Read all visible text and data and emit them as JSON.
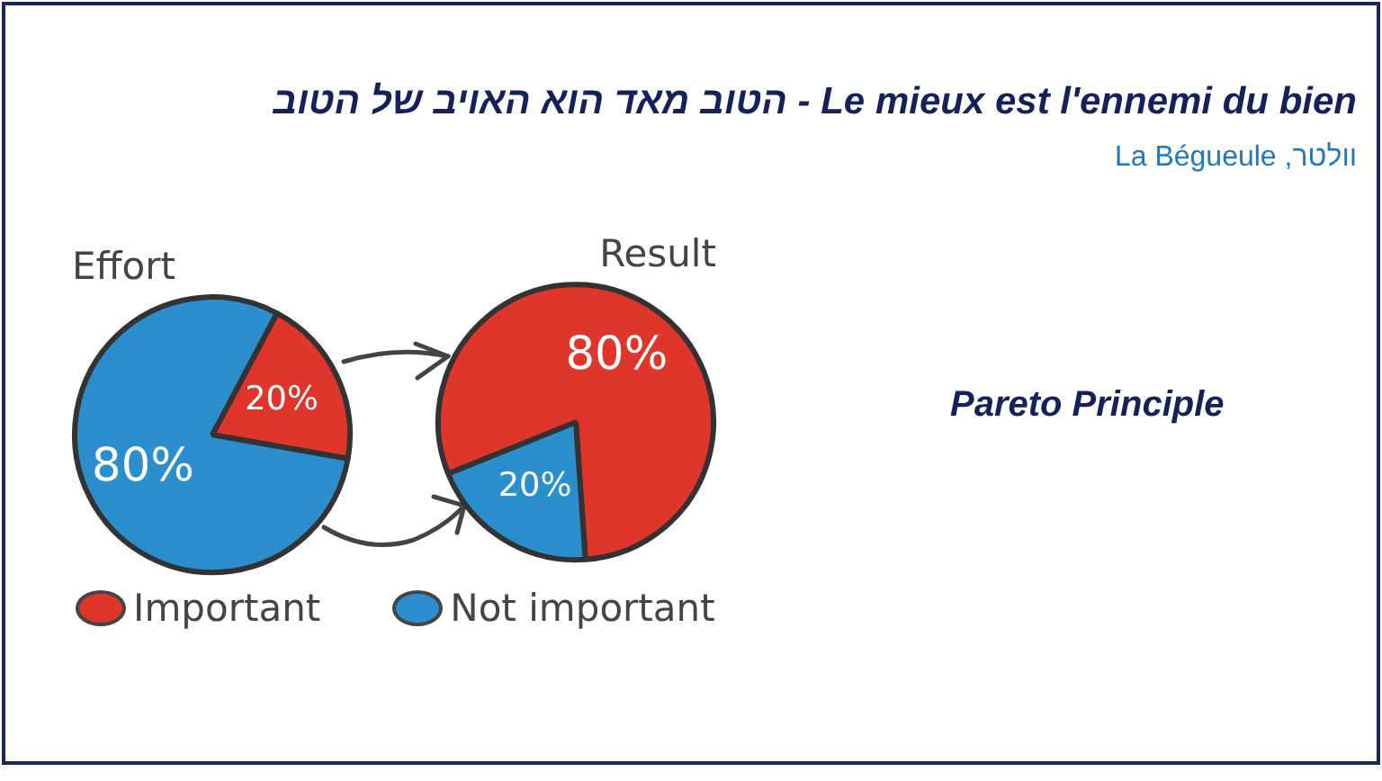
{
  "chart_data": [
    {
      "type": "other",
      "title": "הטוב מאד הוא האויב של הטוב - Le mieux est l'ennemi du bien",
      "subtitle": "וולטר, La Bégueule",
      "annotations": [
        "Pareto Principle"
      ]
    },
    {
      "type": "pie",
      "categories": [
        "Important",
        "Not important"
      ],
      "colors": [
        "#e0352b",
        "#2a8fcc"
      ],
      "legend": "bottom",
      "series": [
        {
          "name": "Effort",
          "values": [
            20,
            80
          ],
          "value_labels": [
            "20%",
            "80%"
          ]
        },
        {
          "name": "Result",
          "values": [
            80,
            20
          ],
          "value_labels": [
            "80%",
            "20%"
          ]
        }
      ]
    }
  ]
}
